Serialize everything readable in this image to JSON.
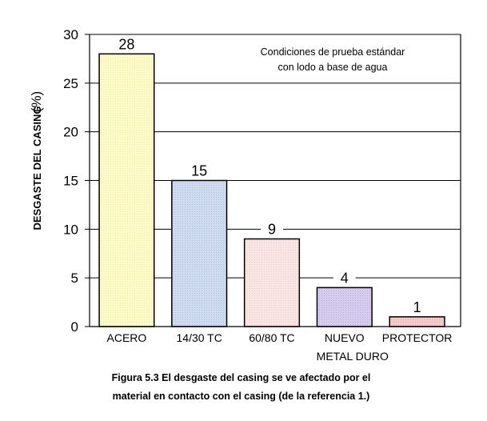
{
  "chart_data": {
    "type": "bar",
    "categories": [
      "ACERO",
      "14/30 TC",
      "60/80 TC",
      "NUEVO",
      "PROTECTOR"
    ],
    "category_sublabels": [
      "",
      "",
      "",
      "METAL DURO",
      ""
    ],
    "values": [
      28,
      15,
      9,
      4,
      1
    ],
    "data_labels": [
      "28",
      "15",
      "9",
      "4",
      "1"
    ],
    "bar_colors": [
      "#fbfac8",
      "#cfdcef",
      "#fae5e5",
      "#d6cdee",
      "#f7caca"
    ],
    "bar_hatch_colors": [
      "#e8e280",
      "#8eaad0",
      "#e8b3b3",
      "#9b8fd0",
      "#e08f8f"
    ],
    "ylabel": "DESGASTE DEL CASING",
    "ylabel_unit": "(%)",
    "ylim": [
      0,
      30
    ],
    "yticks": [
      0,
      5,
      10,
      15,
      20,
      25,
      30
    ],
    "grid": true,
    "annotation": [
      "Condiciones de prueba estándar",
      "con lodo a base de agua"
    ]
  },
  "caption": {
    "line1": "Figura 5.3 El desgaste del casing se ve afectado por el",
    "line2": "material en contacto con el casing (de la referencia 1.)"
  }
}
